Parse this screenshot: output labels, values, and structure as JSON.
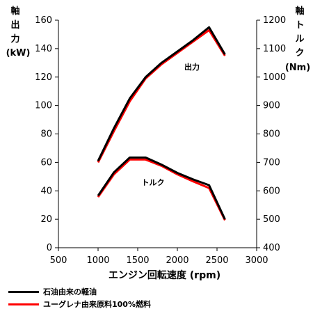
{
  "chart_data": {
    "type": "line",
    "xlabel": "エンジン回転速度 (rpm)",
    "xlim": [
      500,
      3000
    ],
    "x_ticks": [
      500,
      1000,
      1500,
      2000,
      2500,
      3000
    ],
    "y_left": {
      "label_chars": [
        "軸",
        "出",
        "力"
      ],
      "unit": "(kW)",
      "ylim": [
        0,
        160
      ],
      "ticks": [
        0,
        20,
        40,
        60,
        80,
        100,
        120,
        140,
        160
      ]
    },
    "y_right": {
      "label_chars": [
        "軸",
        "ト",
        "ル",
        "ク"
      ],
      "unit": "(Nm)",
      "ylim": [
        400,
        1200
      ],
      "ticks": [
        400,
        500,
        600,
        700,
        800,
        900,
        1000,
        1100,
        1200
      ]
    },
    "annotations": {
      "power": "出力",
      "torque": "トルク"
    },
    "grid": false,
    "legend_position": "bottom-left",
    "series": [
      {
        "name": "石油由来の軽油",
        "color": "#000000",
        "axis": "left",
        "curve": "power",
        "x": [
          1000,
          1200,
          1400,
          1600,
          1800,
          2000,
          2200,
          2400,
          2600
        ],
        "y": [
          61,
          84,
          105,
          120,
          130,
          138,
          146,
          155,
          136
        ]
      },
      {
        "name": "ユーグレナ由来原料100%燃料",
        "color": "#ff0000",
        "axis": "left",
        "curve": "power",
        "x": [
          1000,
          1200,
          1400,
          1600,
          1800,
          2000,
          2200,
          2400,
          2600
        ],
        "y": [
          60,
          82,
          103,
          119,
          129,
          137,
          145,
          153,
          135
        ]
      },
      {
        "name": "石油由来の軽油",
        "color": "#000000",
        "axis": "right",
        "curve": "torque",
        "x": [
          1000,
          1200,
          1400,
          1600,
          1800,
          2000,
          2200,
          2400,
          2600
        ],
        "y": [
          583,
          665,
          717,
          717,
          692,
          663,
          640,
          620,
          500
        ]
      },
      {
        "name": "ユーグレナ由来原料100%燃料",
        "color": "#ff0000",
        "axis": "right",
        "curve": "torque",
        "x": [
          1000,
          1200,
          1400,
          1600,
          1800,
          2000,
          2200,
          2400,
          2600
        ],
        "y": [
          578,
          658,
          710,
          710,
          688,
          658,
          633,
          610,
          497
        ]
      }
    ]
  },
  "legend": [
    {
      "label": "石油由来の軽油",
      "color": "#000000"
    },
    {
      "label": "ユーグレナ由来原料100%燃料",
      "color": "#ff0000"
    }
  ]
}
